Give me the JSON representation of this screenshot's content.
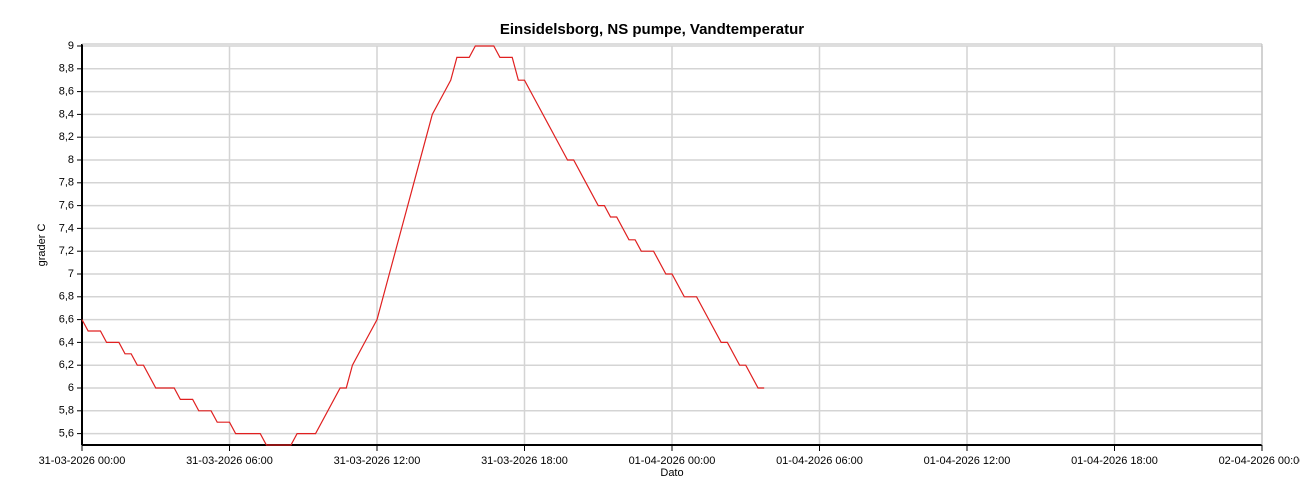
{
  "chart_data": {
    "type": "line",
    "title": "Einsidelsborg, NS pumpe, Vandtemperatur",
    "x_label": "Dato",
    "y_label": "grader C",
    "grid": true,
    "xlim": [
      "31-03-2026 00:00",
      "02-04-2026 00:00"
    ],
    "xticks": [
      "31-03-2026 00:00",
      "31-03-2026 06:00",
      "31-03-2026 12:00",
      "31-03-2026 18:00",
      "01-04-2026 00:00",
      "01-04-2026 06:00",
      "01-04-2026 12:00",
      "01-04-2026 18:00",
      "02-04-2026 00:00"
    ],
    "ylim": [
      5.5,
      9
    ],
    "yticks": [
      {
        "value": 5.6,
        "label": "5,6"
      },
      {
        "value": 5.8,
        "label": "5,8"
      },
      6,
      {
        "value": 6.2,
        "label": "6,2"
      },
      {
        "value": 6.4,
        "label": "6,4"
      },
      {
        "value": 6.6,
        "label": "6,6"
      },
      {
        "value": 6.8,
        "label": "6,8"
      },
      7,
      {
        "value": 7.2,
        "label": "7,2"
      },
      {
        "value": 7.4,
        "label": "7,4"
      },
      {
        "value": 7.6,
        "label": "7,6"
      },
      {
        "value": 7.8,
        "label": "7,8"
      },
      8,
      {
        "value": 8.2,
        "label": "8,2"
      },
      {
        "value": 8.4,
        "label": "8,4"
      },
      {
        "value": 8.6,
        "label": "8,6"
      },
      {
        "value": 8.8,
        "label": "8,8"
      },
      9
    ],
    "x": [
      "31-03-2026 00:00",
      "31-03-2026 00:15",
      "31-03-2026 00:45",
      "31-03-2026 01:00",
      "31-03-2026 01:30",
      "31-03-2026 01:45",
      "31-03-2026 02:00",
      "31-03-2026 02:15",
      "31-03-2026 02:30",
      "31-03-2026 03:00",
      "31-03-2026 03:45",
      "31-03-2026 04:00",
      "31-03-2026 04:30",
      "31-03-2026 04:45",
      "31-03-2026 05:15",
      "31-03-2026 05:30",
      "31-03-2026 06:00",
      "31-03-2026 06:15",
      "31-03-2026 07:15",
      "31-03-2026 07:30",
      "31-03-2026 08:30",
      "31-03-2026 08:45",
      "31-03-2026 09:30",
      "31-03-2026 10:30",
      "31-03-2026 10:45",
      "31-03-2026 11:00",
      "31-03-2026 11:30",
      "31-03-2026 12:00",
      "31-03-2026 12:30",
      "31-03-2026 13:00",
      "31-03-2026 13:30",
      "31-03-2026 14:00",
      "31-03-2026 14:15",
      "31-03-2026 14:45",
      "31-03-2026 15:00",
      "31-03-2026 15:15",
      "31-03-2026 15:45",
      "31-03-2026 16:00",
      "31-03-2026 16:45",
      "31-03-2026 17:00",
      "31-03-2026 17:30",
      "31-03-2026 17:45",
      "31-03-2026 18:00",
      "31-03-2026 18:30",
      "31-03-2026 19:00",
      "31-03-2026 19:30",
      "31-03-2026 19:45",
      "31-03-2026 20:00",
      "31-03-2026 20:30",
      "31-03-2026 21:00",
      "31-03-2026 21:15",
      "31-03-2026 21:30",
      "31-03-2026 21:45",
      "31-03-2026 22:15",
      "31-03-2026 22:30",
      "31-03-2026 22:45",
      "31-03-2026 23:15",
      "31-03-2026 23:45",
      "01-04-2026 00:00",
      "01-04-2026 00:30",
      "01-04-2026 01:00",
      "01-04-2026 01:30",
      "01-04-2026 02:00",
      "01-04-2026 02:15",
      "01-04-2026 02:45",
      "01-04-2026 03:00",
      "01-04-2026 03:30",
      "01-04-2026 03:45"
    ],
    "series": [
      {
        "color": "#e02020",
        "values": [
          6.6,
          6.5,
          6.5,
          6.4,
          6.4,
          6.3,
          6.3,
          6.2,
          6.2,
          6.0,
          6.0,
          5.9,
          5.9,
          5.8,
          5.8,
          5.7,
          5.7,
          5.6,
          5.6,
          5.5,
          5.5,
          5.6,
          5.6,
          6.0,
          6.0,
          6.2,
          6.4,
          6.6,
          7.0,
          7.4,
          7.8,
          8.2,
          8.4,
          8.6,
          8.7,
          8.9,
          8.9,
          9.0,
          9.0,
          8.9,
          8.9,
          8.7,
          8.7,
          8.5,
          8.3,
          8.1,
          8.0,
          8.0,
          7.8,
          7.6,
          7.6,
          7.5,
          7.5,
          7.3,
          7.3,
          7.2,
          7.2,
          7.0,
          7.0,
          6.8,
          6.8,
          6.6,
          6.4,
          6.4,
          6.2,
          6.2,
          6.0,
          6.0
        ]
      }
    ]
  }
}
